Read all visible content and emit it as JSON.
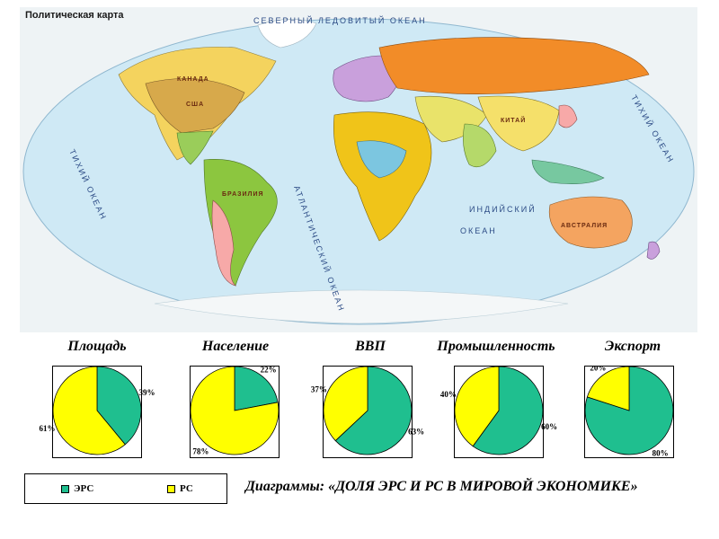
{
  "map": {
    "title": "Политическая карта",
    "oceans": {
      "north": "СЕВЕРНЫЙ ЛЕДОВИТЫЙ ОКЕАН",
      "atlantic": "АТЛАНТИЧЕСКИЙ ОКЕАН",
      "pacific": "ТИХИЙ ОКЕАН",
      "indian_1": "ИНДИЙСКИЙ",
      "indian_2": "ОКЕАН"
    },
    "countries": {
      "canada": "КАНАДА",
      "usa": "США",
      "brazil": "БРАЗИЛИЯ",
      "china": "КИТАЙ",
      "australia": "АВСТРАЛИЯ"
    }
  },
  "colors": {
    "ers": "#1fbf8f",
    "rs": "#ffff00",
    "ocean": "#cfe9f5"
  },
  "legend": {
    "ers_label": "ЭРС",
    "rs_label": "РС"
  },
  "caption": "Диаграммы: «ДОЛЯ ЭРС И РС В МИРОВОЙ ЭКОНОМИКЕ»",
  "chart_data": [
    {
      "type": "pie",
      "title": "Площадь",
      "labels": [
        "ЭРС",
        "РС"
      ],
      "values": [
        39,
        61
      ],
      "value_labels": [
        "39%",
        "61%"
      ]
    },
    {
      "type": "pie",
      "title": "Население",
      "labels": [
        "ЭРС",
        "РС"
      ],
      "values": [
        22,
        78
      ],
      "value_labels": [
        "22%",
        "78%"
      ]
    },
    {
      "type": "pie",
      "title": "ВВП",
      "labels": [
        "ЭРС",
        "РС"
      ],
      "values": [
        63,
        37
      ],
      "value_labels": [
        "63%",
        "37%"
      ]
    },
    {
      "type": "pie",
      "title": "Промышленность",
      "labels": [
        "ЭРС",
        "РС"
      ],
      "values": [
        60,
        40
      ],
      "value_labels": [
        "60%",
        "40%"
      ]
    },
    {
      "type": "pie",
      "title": "Экспорт",
      "labels": [
        "ЭРС",
        "РС"
      ],
      "values": [
        80,
        20
      ],
      "value_labels": [
        "80%",
        "20%"
      ]
    }
  ]
}
